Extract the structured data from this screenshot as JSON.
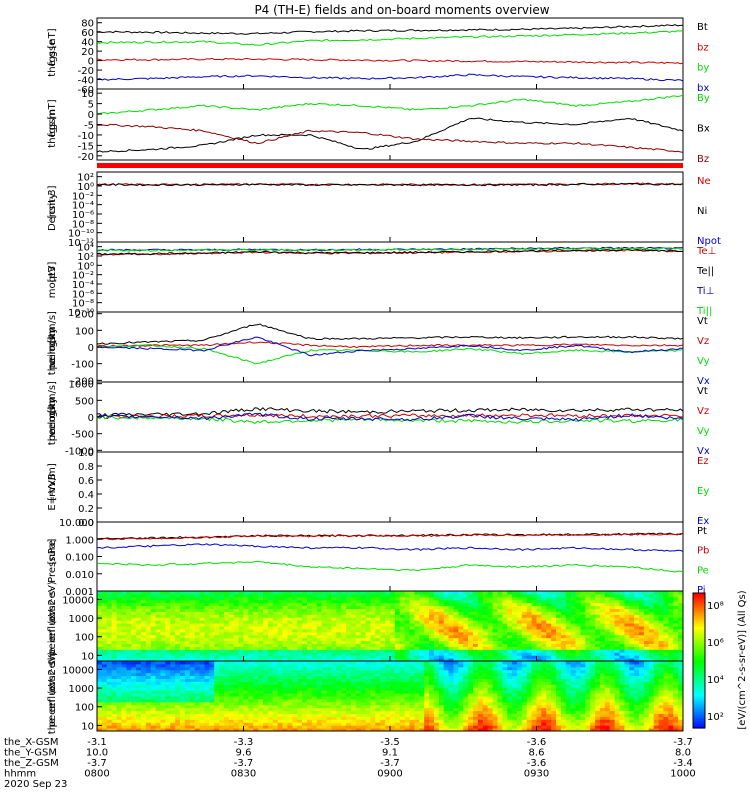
{
  "title": "P4 (TH-E) fields and on-board moments overview",
  "chart_data": [
    {
      "type": "line",
      "ylabel": [
        "the",
        "fgs",
        "gse",
        "[nT]"
      ],
      "ylim": [
        -60,
        90
      ],
      "ticks": [
        "80",
        "60",
        "40",
        "20",
        "0",
        "-20",
        "-40",
        "-60"
      ],
      "tick_values": [
        80,
        60,
        40,
        20,
        0,
        -20,
        -40,
        -60
      ],
      "series": [
        {
          "name": "Bt",
          "color": "#000000",
          "values": [
            61,
            60,
            58,
            57,
            61,
            63,
            64,
            65,
            66,
            68,
            72,
            75
          ]
        },
        {
          "name": "bz",
          "color": "#cc0000",
          "values": [
            2,
            2,
            3,
            3,
            2,
            1,
            0,
            -1,
            -2,
            -3,
            -4,
            -5
          ]
        },
        {
          "name": "by",
          "color": "#00dd00",
          "values": [
            38,
            39,
            40,
            33,
            42,
            44,
            47,
            50,
            52,
            55,
            58,
            62
          ]
        },
        {
          "name": "bx",
          "color": "#0000cc",
          "values": [
            -40,
            -38,
            -34,
            -32,
            -36,
            -38,
            -36,
            -30,
            -34,
            -36,
            -38,
            -42
          ]
        }
      ]
    },
    {
      "type": "line",
      "ylabel": [
        "the",
        "fgs",
        "gsm",
        "[nT]"
      ],
      "ylim": [
        -22,
        12
      ],
      "ticks": [
        "10",
        "5",
        "0",
        "-5",
        "-10",
        "-15",
        "-20"
      ],
      "tick_values": [
        10,
        5,
        0,
        -5,
        -10,
        -15,
        -20
      ],
      "series": [
        {
          "name": "By",
          "color": "#00dd00",
          "values": [
            0,
            2,
            4,
            2,
            5,
            4,
            2,
            4,
            7,
            4,
            6,
            9
          ]
        },
        {
          "name": "Bx",
          "color": "#000000",
          "values": [
            -18,
            -17,
            -15,
            -10,
            -10,
            -17,
            -13,
            -2,
            -4,
            -5,
            -2,
            -8
          ]
        },
        {
          "name": "Bz",
          "color": "#880000",
          "values": [
            -5,
            -6,
            -8,
            -14,
            -8,
            -9,
            -12,
            -13,
            -14,
            -14,
            -16,
            -18
          ]
        }
      ]
    },
    {
      "type": "line",
      "ylabel": [
        "Density",
        "[cm-3]"
      ],
      "ylim_log": [
        -12,
        3
      ],
      "ticks": [
        "10²",
        "10⁰",
        "10⁻²",
        "10⁻⁴",
        "10⁻⁶",
        "10⁻⁸",
        "10⁻¹⁰",
        "10⁻¹²"
      ],
      "tick_values": [
        2,
        0,
        -2,
        -4,
        -6,
        -8,
        -10,
        -12
      ],
      "series": [
        {
          "name": "Ne",
          "color": "#cc0000",
          "values": [
            0.35,
            0.3,
            0.32,
            0.4,
            0.3,
            0.3,
            0.3,
            0.3,
            0.3,
            0.4,
            0.5,
            0.4
          ]
        },
        {
          "name": "Ni",
          "color": "#000000",
          "values": [
            0.3,
            0.25,
            0.28,
            0.35,
            0.25,
            0.25,
            0.25,
            0.25,
            0.25,
            0.35,
            0.45,
            0.35
          ]
        },
        {
          "name": "Npot",
          "color": "#0000cc",
          "values": []
        }
      ]
    },
    {
      "type": "line",
      "ylabel": [
        "moqt3",
        "[eV]"
      ],
      "ylim_log": [
        -10,
        5
      ],
      "ticks": [
        "10⁴",
        "10²",
        "10⁰",
        "10⁻²",
        "10⁻⁴",
        "10⁻⁶",
        "10⁻⁸",
        "10⁻¹⁰"
      ],
      "tick_values": [
        4,
        2,
        0,
        -2,
        -4,
        -6,
        -8,
        -10
      ],
      "series": [
        {
          "name": "Te⊥",
          "color": "#cc0000",
          "values": [
            2.3,
            2.4,
            2.5,
            2.8,
            2.6,
            2.6,
            2.7,
            2.8,
            3.0,
            3.1,
            3.2,
            3.0
          ]
        },
        {
          "name": "Te||",
          "color": "#000000",
          "values": [
            2.4,
            2.5,
            2.6,
            2.9,
            2.7,
            2.7,
            2.8,
            2.9,
            3.1,
            3.2,
            3.3,
            3.1
          ]
        },
        {
          "name": "Ti⊥",
          "color": "#0000cc",
          "values": [
            3.3,
            3.3,
            3.3,
            3.4,
            3.3,
            3.4,
            3.4,
            3.5,
            3.6,
            3.7,
            3.7,
            3.6
          ]
        },
        {
          "name": "Ti||",
          "color": "#00dd00",
          "values": [
            3.2,
            3.2,
            3.3,
            3.3,
            3.3,
            3.3,
            3.4,
            3.4,
            3.5,
            3.6,
            3.6,
            3.6
          ]
        }
      ]
    },
    {
      "type": "line",
      "ylabel": [
        "the",
        "peim",
        "velocity",
        "gsm",
        "[km/s]"
      ],
      "ylim": [
        -210,
        210
      ],
      "ticks": [
        "200",
        "100",
        "0",
        "-100",
        "-200"
      ],
      "tick_values": [
        200,
        100,
        0,
        -100,
        -200
      ],
      "series": [
        {
          "name": "Vt",
          "color": "#000000",
          "values": [
            20,
            30,
            40,
            140,
            50,
            50,
            55,
            60,
            55,
            60,
            60,
            50
          ]
        },
        {
          "name": "Vz",
          "color": "#cc0000",
          "values": [
            5,
            10,
            10,
            30,
            10,
            0,
            10,
            10,
            10,
            15,
            10,
            10
          ]
        },
        {
          "name": "Vy",
          "color": "#00dd00",
          "values": [
            0,
            10,
            -10,
            -100,
            -20,
            -20,
            -30,
            -10,
            -40,
            -20,
            -30,
            -20
          ]
        },
        {
          "name": "Vx",
          "color": "#0000cc",
          "values": [
            0,
            -10,
            -20,
            60,
            -50,
            -20,
            -10,
            10,
            -20,
            10,
            -30,
            -10
          ]
        }
      ]
    },
    {
      "type": "line",
      "ylabel": [
        "the",
        "peem",
        "velocity",
        "gsm",
        "[km/s]"
      ],
      "ylim": [
        -1050,
        1050
      ],
      "ticks": [
        "1000",
        "500",
        "0",
        "-500",
        "-1000"
      ],
      "tick_values": [
        1000,
        500,
        0,
        -500,
        -1000
      ],
      "series": [
        {
          "name": "Vt",
          "color": "#000000",
          "values": [
            60,
            80,
            100,
            250,
            180,
            150,
            180,
            200,
            220,
            200,
            230,
            200
          ]
        },
        {
          "name": "Vz",
          "color": "#cc0000",
          "values": [
            0,
            20,
            30,
            60,
            20,
            30,
            40,
            40,
            60,
            40,
            40,
            30
          ]
        },
        {
          "name": "Vy",
          "color": "#00dd00",
          "values": [
            0,
            -30,
            -50,
            -150,
            -100,
            -80,
            -100,
            -120,
            -150,
            -100,
            -120,
            -80
          ]
        },
        {
          "name": "Vx",
          "color": "#0000cc",
          "values": [
            0,
            20,
            -40,
            80,
            -60,
            -50,
            -70,
            40,
            -60,
            -80,
            60,
            -60
          ]
        }
      ]
    },
    {
      "type": "line",
      "ylabel": [
        "E=-VxB",
        "[mV/m]"
      ],
      "ylim": [
        0,
        1
      ],
      "ticks": [
        "1.0",
        "0.8",
        "0.6",
        "0.4",
        "0.2",
        "0.0"
      ],
      "tick_values": [
        1.0,
        0.8,
        0.6,
        0.4,
        0.2,
        0.0
      ],
      "series": [
        {
          "name": "Ez",
          "color": "#cc0000",
          "values": []
        },
        {
          "name": "Ey",
          "color": "#00dd00",
          "values": []
        },
        {
          "name": "Ex",
          "color": "#0000cc",
          "values": []
        }
      ]
    },
    {
      "type": "line",
      "ylabel": [
        "Pressure",
        "[nPa]"
      ],
      "ylim_log": [
        -3,
        1
      ],
      "ticks": [
        "10.000",
        "1.000",
        "0.100",
        "0.010",
        "0.001"
      ],
      "tick_values": [
        1,
        0,
        -1,
        -2,
        -3
      ],
      "series": [
        {
          "name": "Pt",
          "color": "#000000",
          "values": [
            0.05,
            0.08,
            0.12,
            0.2,
            0.2,
            0.22,
            0.23,
            0.26,
            0.26,
            0.28,
            0.3,
            0.32
          ]
        },
        {
          "name": "Pb",
          "color": "#cc0000",
          "values": [
            0.0,
            0.05,
            0.1,
            0.2,
            0.18,
            0.2,
            0.2,
            0.24,
            0.24,
            0.26,
            0.28,
            0.3
          ]
        },
        {
          "name": "Pe",
          "color": "#00dd00",
          "values": [
            -1.4,
            -1.5,
            -1.4,
            -1.3,
            -1.6,
            -1.7,
            -1.8,
            -1.5,
            -1.6,
            -1.5,
            -1.6,
            -1.9
          ]
        },
        {
          "name": "Pi",
          "color": "#0000cc",
          "values": [
            -0.5,
            -0.4,
            -0.3,
            -0.4,
            -0.5,
            -0.5,
            -0.6,
            -0.5,
            -0.6,
            -0.5,
            -0.6,
            -0.7
          ]
        }
      ]
    },
    {
      "type": "heatmap",
      "ylabel": [
        "the",
        "peir",
        "en",
        "eflux",
        "eV",
        "(cm2·s·",
        "sr·eV)"
      ],
      "ticks": [
        "10000",
        "1000",
        "100",
        "10"
      ],
      "tick_values": [
        4,
        3,
        2,
        1
      ],
      "ylim_log": [
        0.7,
        4.45
      ],
      "colorbar_ticks": [
        "10⁸",
        "10⁶",
        "10⁴",
        "10²"
      ],
      "colorbar_values": [
        8,
        6,
        4,
        2
      ]
    },
    {
      "type": "heatmap",
      "ylabel": [
        "the",
        "peer",
        "en",
        "eflux",
        "eV",
        "(cm2·s·",
        "sr·eV)"
      ],
      "ticks": [
        "10000",
        "1000",
        "100",
        "10"
      ],
      "tick_values": [
        4,
        3,
        2,
        1
      ],
      "ylim_log": [
        0.7,
        4.45
      ],
      "colorbar_ticks": [
        "10⁸",
        "10⁶",
        "10⁴",
        "10²"
      ],
      "colorbar_values": [
        8,
        6,
        4,
        2
      ]
    }
  ],
  "colorbar_unit": "[eV/(cm^2-s-sr-eV)] (All Qs)",
  "xaxis": {
    "row_labels": [
      "the_X-GSM",
      "the_Y-GSM",
      "the_Z-GSM",
      "hhmm",
      "2020 Sep 23"
    ],
    "columns": [
      [
        "-3.1",
        "10.0",
        "-3.7",
        "0800"
      ],
      [
        "-3.3",
        "9.6",
        "-3.7",
        "0830"
      ],
      [
        "-3.5",
        "9.1",
        "-3.7",
        "0900"
      ],
      [
        "-3.6",
        "8.6",
        "-3.6",
        "0930"
      ],
      [
        "-3.7",
        "8.0",
        "-3.4",
        "1000"
      ]
    ]
  }
}
